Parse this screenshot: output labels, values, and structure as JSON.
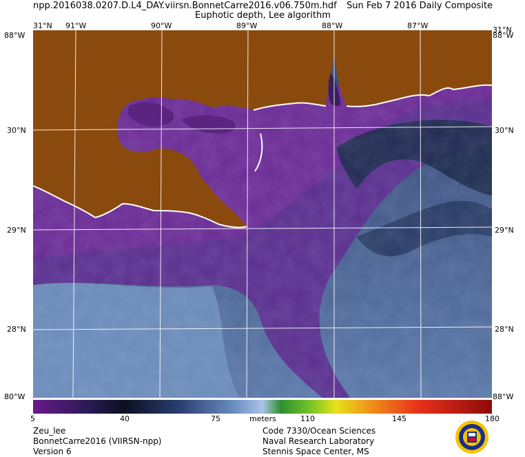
{
  "header": {
    "file_line": "npp.2016038.0207.D.L4_DAY.viirsn.BonnetCarre2016.v06.750m.hdf",
    "date_line": "Sun Feb  7 2016 Daily Composite",
    "product_line": "Euphotic depth, Lee algorithm"
  },
  "axes": {
    "top_longitudes": [
      "91°W",
      "90°W",
      "89°W",
      "88°W",
      "87°W"
    ],
    "left_latitudes": [
      "31°N",
      "30°N",
      "29°N",
      "28°N"
    ],
    "right_latitudes": [
      "31°N",
      "30°N",
      "29°N",
      "28°N"
    ],
    "corner_labels": {
      "top_left_lat": "31°N",
      "top_left_lon": "88°W",
      "top_right_lat": "31°N",
      "top_right_lon": "88°W",
      "bottom_left": "80°W",
      "bottom_right": "88°W"
    }
  },
  "colorbar": {
    "unit_label": "meters",
    "ticks": [
      "5",
      "40",
      "75",
      "110",
      "145",
      "180"
    ],
    "range": [
      5,
      180
    ]
  },
  "footer": {
    "left": [
      "Zeu_lee",
      "BonnetCarre2016 (VIIRSN-npp)",
      "Version 6"
    ],
    "right": [
      "Code 7330/Ocean Sciences",
      "Naval Research Laboratory",
      "Stennis Space Center, MS"
    ]
  },
  "colors": {
    "land": "#8a4a0e",
    "coastal_water": "#6a2a92",
    "shelf_water": "#4a3d86",
    "offshore_water": "#3b5585",
    "deep_dark": "#16213f",
    "gridline": "#ffffff"
  },
  "icons": {
    "seal": "naval-research-laboratory-seal"
  }
}
